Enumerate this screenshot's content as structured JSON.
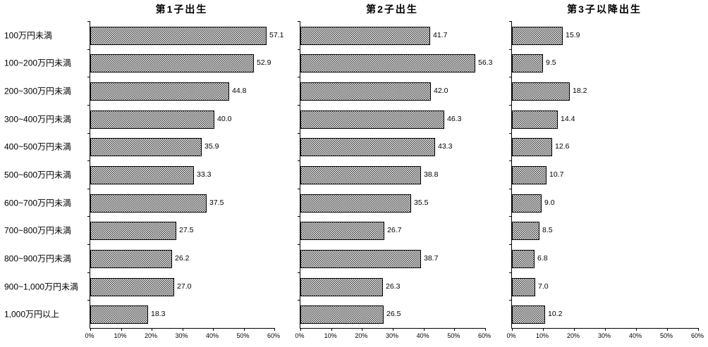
{
  "page": {
    "background": "#ffffff",
    "text_color": "#000000"
  },
  "chart_data": {
    "type": "bar",
    "orientation": "horizontal",
    "grid": false,
    "legend": false,
    "xlabel": "",
    "ylabel": "",
    "xlim": [
      0,
      60
    ],
    "xtick_labels": [
      "0%",
      "10%",
      "20%",
      "30%",
      "40%",
      "50%",
      "60%"
    ],
    "value_labels": true,
    "categories": [
      "100万円未満",
      "100~200万円未満",
      "200~300万円未満",
      "300~400万円未満",
      "400~500万円未満",
      "500~600万円未満",
      "600~700万円未満",
      "700~800万円未満",
      "800~900万円未満",
      "900~1,000万円未満",
      "1,000万円以上"
    ],
    "series": [
      {
        "name": "第1子出生",
        "values": [
          57.1,
          52.9,
          44.8,
          40.0,
          35.9,
          33.3,
          37.5,
          27.5,
          26.2,
          27.0,
          18.3
        ]
      },
      {
        "name": "第2子出生",
        "values": [
          41.7,
          56.3,
          42.0,
          46.3,
          43.3,
          38.8,
          35.5,
          26.7,
          38.7,
          26.3,
          26.5
        ]
      },
      {
        "name": "第3子以降出生",
        "values": [
          15.9,
          9.5,
          18.2,
          14.4,
          12.6,
          10.7,
          9.0,
          8.5,
          6.8,
          7.0,
          10.2
        ]
      }
    ],
    "bar_style": {
      "fill_pattern": "checkerboard",
      "fill_color": "#3c3c3c",
      "border_color": "#000000",
      "background": "#ffffff"
    }
  }
}
